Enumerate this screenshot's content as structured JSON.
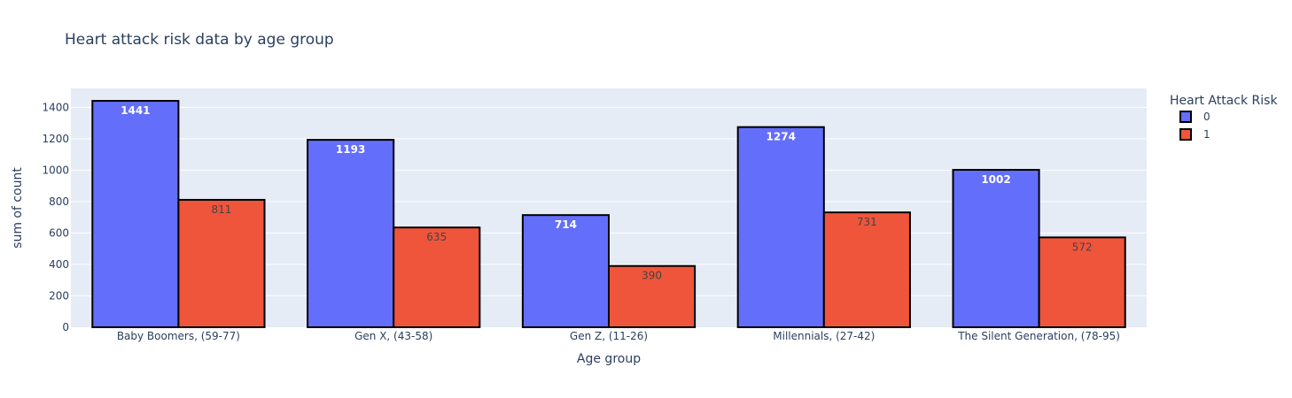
{
  "chart_data": {
    "type": "bar",
    "title": "Heart attack risk data by age group",
    "xlabel": "Age group",
    "ylabel": "sum of count",
    "categories": [
      "Baby Boomers, (59-77)",
      "Gen X, (43-58)",
      "Gen Z, (11-26)",
      "Millennials, (27-42)",
      "The Silent Generation, (78-95)"
    ],
    "series": [
      {
        "name": "0",
        "color": "#636efa",
        "label_color": "#ffffff",
        "values": [
          1441,
          1193,
          714,
          1274,
          1002
        ]
      },
      {
        "name": "1",
        "color": "#ef553b",
        "label_color": "#444444",
        "values": [
          811,
          635,
          390,
          731,
          572
        ]
      }
    ],
    "ylim": [
      0,
      1520
    ],
    "yticks": [
      0,
      200,
      400,
      600,
      800,
      1000,
      1200,
      1400
    ],
    "grid": true,
    "barmode": "group",
    "legend": {
      "title": "Heart Attack Risk",
      "position": "top-right"
    },
    "colors": {
      "plot_bg": "#e5ecf6",
      "grid": "#ffffff",
      "bar_outline": "#000000"
    }
  }
}
